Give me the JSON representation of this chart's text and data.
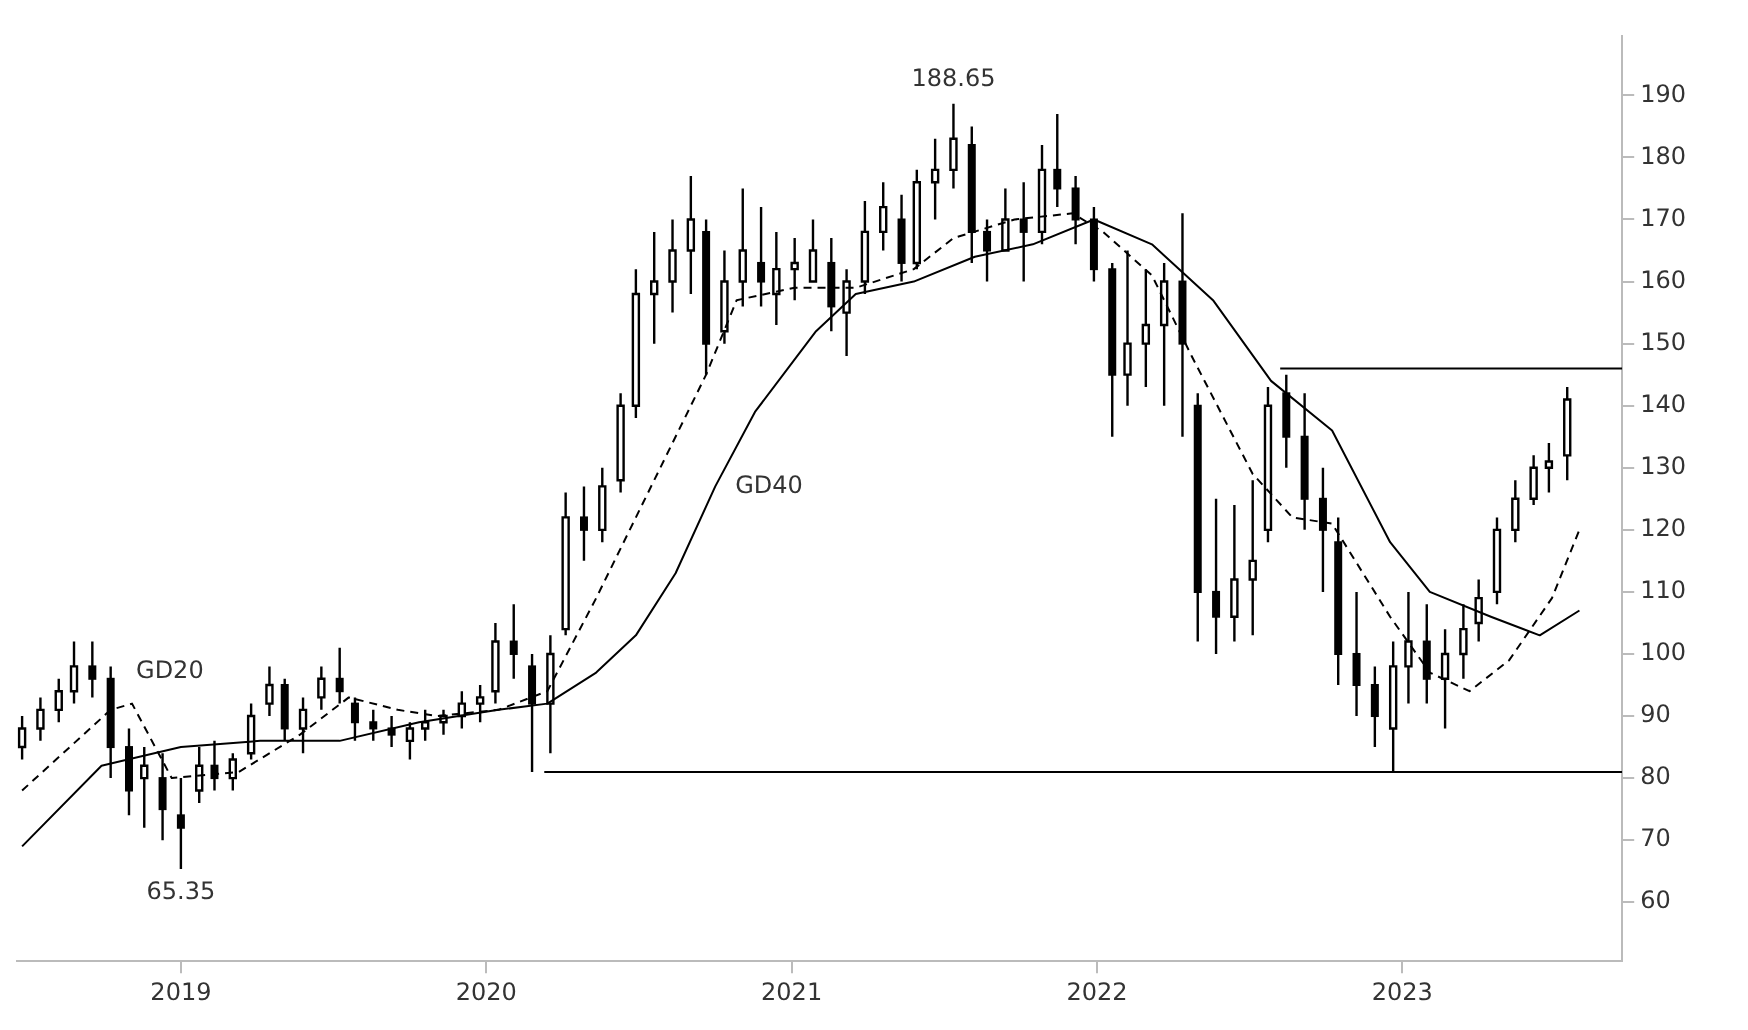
{
  "chart_data": {
    "type": "candlestick",
    "color": "#000000",
    "x": [
      2018.48,
      2018.54,
      2018.6,
      2018.65,
      2018.71,
      2018.77,
      2018.83,
      2018.88,
      2018.94,
      2019.0,
      2019.06,
      2019.11,
      2019.17,
      2019.23,
      2019.29,
      2019.34,
      2019.4,
      2019.46,
      2019.52,
      2019.57,
      2019.63,
      2019.69,
      2019.75,
      2019.8,
      2019.86,
      2019.92,
      2019.98,
      2020.03,
      2020.09,
      2020.15,
      2020.21,
      2020.26,
      2020.32,
      2020.38,
      2020.44,
      2020.49,
      2020.55,
      2020.61,
      2020.67,
      2020.72,
      2020.78,
      2020.84,
      2020.9,
      2020.95,
      2021.01,
      2021.07,
      2021.13,
      2021.18,
      2021.24,
      2021.3,
      2021.36,
      2021.41,
      2021.47,
      2021.53,
      2021.59,
      2021.64,
      2021.7,
      2021.76,
      2021.82,
      2021.87,
      2021.93,
      2021.99,
      2022.05,
      2022.1,
      2022.16,
      2022.22,
      2022.28,
      2022.33,
      2022.39,
      2022.45,
      2022.51,
      2022.56,
      2022.62,
      2022.68,
      2022.74,
      2022.79,
      2022.85,
      2022.91,
      2022.97,
      2023.02,
      2023.08,
      2023.14,
      2023.2,
      2023.25,
      2023.31,
      2023.37,
      2023.43,
      2023.48,
      2023.54
    ],
    "ohlc": [
      [
        85,
        90,
        83,
        88
      ],
      [
        88,
        93,
        86,
        91
      ],
      [
        91,
        96,
        89,
        94
      ],
      [
        94,
        102,
        92,
        98
      ],
      [
        98,
        102,
        93,
        96
      ],
      [
        96,
        98,
        80,
        85
      ],
      [
        85,
        88,
        74,
        78
      ],
      [
        80,
        85,
        72,
        82
      ],
      [
        80,
        84,
        70,
        75
      ],
      [
        74,
        80,
        65.35,
        72
      ],
      [
        78,
        85,
        76,
        82
      ],
      [
        82,
        86,
        78,
        80
      ],
      [
        80,
        84,
        78,
        83
      ],
      [
        84,
        92,
        83,
        90
      ],
      [
        92,
        98,
        90,
        95
      ],
      [
        95,
        96,
        86,
        88
      ],
      [
        88,
        93,
        84,
        91
      ],
      [
        93,
        98,
        91,
        96
      ],
      [
        96,
        101,
        92,
        94
      ],
      [
        92,
        93,
        86,
        89
      ],
      [
        89,
        91,
        86,
        88
      ],
      [
        88,
        90,
        85,
        87
      ],
      [
        86,
        89,
        83,
        88
      ],
      [
        88,
        91,
        86,
        89
      ],
      [
        89,
        91,
        87,
        90
      ],
      [
        90,
        94,
        88,
        92
      ],
      [
        92,
        95,
        89,
        93
      ],
      [
        94,
        105,
        92,
        102
      ],
      [
        102,
        108,
        96,
        100
      ],
      [
        98,
        100,
        81,
        92
      ],
      [
        92,
        103,
        84,
        100
      ],
      [
        104,
        126,
        103,
        122
      ],
      [
        122,
        127,
        115,
        120
      ],
      [
        120,
        130,
        118,
        127
      ],
      [
        128,
        142,
        126,
        140
      ],
      [
        140,
        162,
        138,
        158
      ],
      [
        158,
        168,
        150,
        160
      ],
      [
        160,
        170,
        155,
        165
      ],
      [
        165,
        177,
        158,
        170
      ],
      [
        168,
        170,
        145,
        150
      ],
      [
        152,
        165,
        150,
        160
      ],
      [
        160,
        175,
        156,
        165
      ],
      [
        163,
        172,
        156,
        160
      ],
      [
        158,
        168,
        153,
        162
      ],
      [
        162,
        167,
        157,
        163
      ],
      [
        160,
        170,
        160,
        165
      ],
      [
        163,
        167,
        152,
        156
      ],
      [
        155,
        162,
        148,
        160
      ],
      [
        160,
        173,
        158,
        168
      ],
      [
        168,
        176,
        165,
        172
      ],
      [
        170,
        174,
        160,
        163
      ],
      [
        163,
        178,
        162,
        176
      ],
      [
        176,
        183,
        170,
        178
      ],
      [
        178,
        188.65,
        175,
        183
      ],
      [
        182,
        185,
        163,
        168
      ],
      [
        168,
        170,
        160,
        165
      ],
      [
        165,
        175,
        165,
        170
      ],
      [
        170,
        176,
        160,
        168
      ],
      [
        168,
        182,
        166,
        178
      ],
      [
        178,
        187,
        172,
        175
      ],
      [
        175,
        177,
        166,
        170
      ],
      [
        170,
        172,
        160,
        162
      ],
      [
        162,
        163,
        135,
        145
      ],
      [
        145,
        165,
        140,
        150
      ],
      [
        150,
        162,
        143,
        153
      ],
      [
        153,
        163,
        140,
        160
      ],
      [
        160,
        171,
        135,
        150
      ],
      [
        140,
        142,
        102,
        110
      ],
      [
        110,
        125,
        100,
        106
      ],
      [
        106,
        124,
        102,
        112
      ],
      [
        112,
        128,
        103,
        115
      ],
      [
        120,
        143,
        118,
        140
      ],
      [
        142,
        145,
        130,
        135
      ],
      [
        135,
        142,
        120,
        125
      ],
      [
        125,
        130,
        110,
        120
      ],
      [
        118,
        122,
        95,
        100
      ],
      [
        100,
        110,
        90,
        95
      ],
      [
        95,
        98,
        85,
        90
      ],
      [
        88,
        102,
        81,
        98
      ],
      [
        98,
        110,
        92,
        102
      ],
      [
        102,
        108,
        92,
        96
      ],
      [
        96,
        104,
        88,
        100
      ],
      [
        100,
        108,
        96,
        104
      ],
      [
        105,
        112,
        102,
        109
      ],
      [
        110,
        122,
        108,
        120
      ],
      [
        120,
        128,
        118,
        125
      ],
      [
        125,
        132,
        124,
        130
      ],
      [
        130,
        134,
        126,
        131
      ],
      [
        132,
        143,
        128,
        141
      ]
    ],
    "series": [
      {
        "name": "GD20",
        "type": "line",
        "line_style": "dashed",
        "color": "#000000",
        "x": [
          2018.48,
          2018.77,
          2018.84,
          2018.97,
          2019.19,
          2019.39,
          2019.55,
          2019.71,
          2019.84,
          2020.04,
          2020.2,
          2020.36,
          2020.56,
          2020.72,
          2020.82,
          2021.01,
          2021.21,
          2021.4,
          2021.53,
          2021.73,
          2021.92,
          2022.02,
          2022.18,
          2022.31,
          2022.51,
          2022.64,
          2022.77,
          2022.96,
          2023.09,
          2023.22,
          2023.35,
          2023.49,
          2023.58
        ],
        "values": [
          78,
          91,
          92,
          80,
          81,
          87,
          93,
          91,
          90,
          91,
          94,
          109,
          129,
          145,
          157,
          159,
          159,
          162,
          167,
          170,
          171,
          168,
          161,
          148,
          129,
          122,
          121,
          106,
          97,
          94,
          99,
          109,
          120
        ]
      },
      {
        "name": "GD40",
        "type": "line",
        "line_style": "solid",
        "color": "#000000",
        "x": [
          2018.48,
          2018.74,
          2019.0,
          2019.26,
          2019.52,
          2019.78,
          2020.04,
          2020.2,
          2020.36,
          2020.49,
          2020.62,
          2020.75,
          2020.88,
          2021.08,
          2021.21,
          2021.4,
          2021.6,
          2021.79,
          2021.99,
          2022.18,
          2022.38,
          2022.57,
          2022.77,
          2022.96,
          2023.09,
          2023.29,
          2023.45,
          2023.58
        ],
        "values": [
          69,
          82,
          85,
          86,
          86,
          89,
          91,
          92,
          97,
          103,
          113,
          127,
          139,
          152,
          158,
          160,
          164,
          166,
          170,
          166,
          157,
          144,
          136,
          118,
          110,
          106,
          103,
          107
        ]
      },
      {
        "type": "line",
        "line_style": "solid",
        "color": "#000000",
        "x": [
          2020.19,
          2023.72
        ],
        "values": [
          81,
          81
        ]
      },
      {
        "type": "line",
        "line_style": "solid",
        "color": "#000000",
        "x": [
          2022.6,
          2023.72
        ],
        "values": [
          146,
          146
        ]
      }
    ],
    "xlim": [
      2018.46,
      2023.72
    ],
    "ylim": [
      50.5,
      199.5
    ],
    "xticks": [
      2019,
      2020,
      2021,
      2022,
      2023
    ],
    "yticks": [
      60,
      70,
      80,
      90,
      100,
      110,
      120,
      130,
      140,
      150,
      160,
      170,
      180,
      190
    ],
    "annotations": [
      {
        "text": "188.65",
        "x": 2021.53,
        "y": 188.65
      },
      {
        "text": "65.35",
        "x": 2019.0,
        "y": 65.35
      }
    ]
  }
}
